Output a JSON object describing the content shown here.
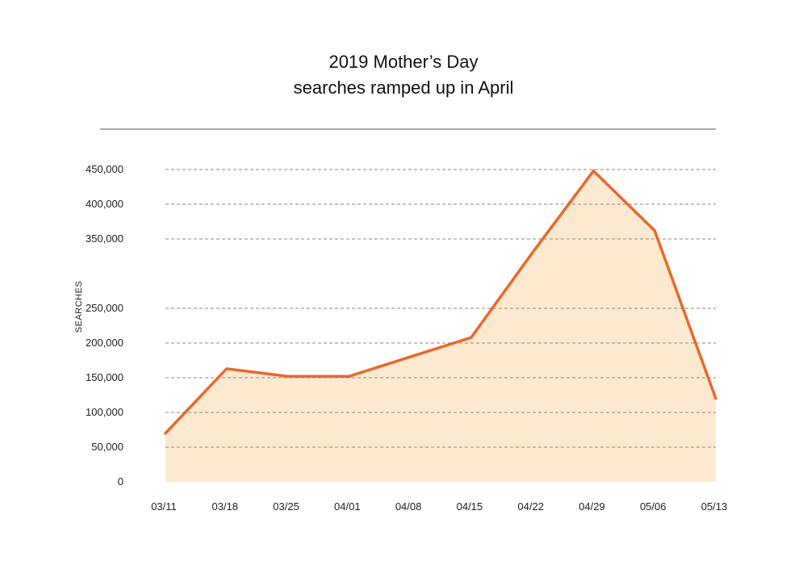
{
  "chart_data": {
    "type": "area",
    "title_lines": [
      "2019 Mother’s Day",
      "searches ramped up in April"
    ],
    "xlabel": "",
    "ylabel": "SEARCHES",
    "categories": [
      "03/11",
      "03/18",
      "03/25",
      "04/01",
      "04/08",
      "04/15",
      "04/22",
      "04/29",
      "05/06",
      "05/13"
    ],
    "values": [
      70000,
      163000,
      152000,
      152000,
      180000,
      208000,
      330000,
      448000,
      362000,
      120000
    ],
    "yticks": [
      0,
      50000,
      100000,
      150000,
      200000,
      250000,
      350000,
      400000,
      450000
    ],
    "ytick_labels": [
      "0",
      "50,000",
      "100,000",
      "150,000",
      "200,000",
      "250,000",
      "350,000",
      "400,000",
      "450,000"
    ],
    "ylim": [
      0,
      450000
    ],
    "grid": true,
    "colors": {
      "line": "#e8692c",
      "fill": "#fce9cf",
      "grid": "#8a8a8a",
      "rule": "#555555"
    }
  }
}
